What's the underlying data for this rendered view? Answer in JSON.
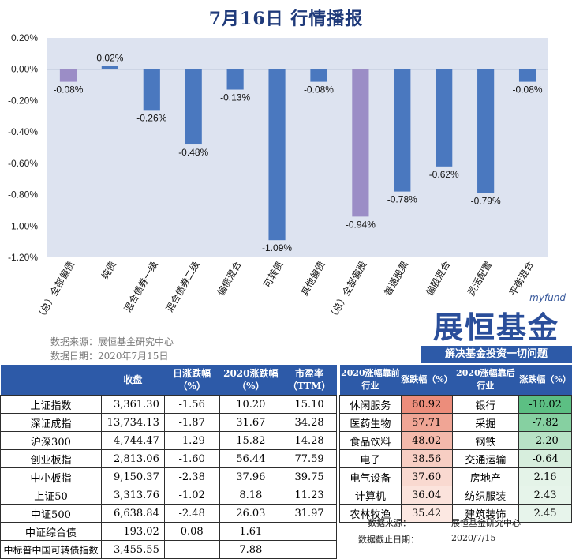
{
  "title": "7月16日 行情播报",
  "chart_data": {
    "type": "bar",
    "categories": [
      "（总）全部偏债",
      "纯债",
      "混合债券一级",
      "混合债券二级",
      "偏债混合",
      "可转债",
      "其他偏债",
      "（总）全部偏股",
      "普通股票",
      "偏股混合",
      "灵活配置",
      "平衡混合"
    ],
    "values": [
      -0.08,
      0.02,
      -0.26,
      -0.48,
      -0.13,
      -1.09,
      -0.08,
      -0.94,
      -0.78,
      -0.62,
      -0.79,
      -0.08
    ],
    "value_labels": [
      "-0.08%",
      "0.02%",
      "-0.26%",
      "-0.48%",
      "-0.13%",
      "-1.09%",
      "-0.08%",
      "-0.94%",
      "-0.78%",
      "-0.62%",
      "-0.79%",
      "-0.08%"
    ],
    "highlight": [
      true,
      false,
      false,
      false,
      false,
      false,
      false,
      true,
      false,
      false,
      false,
      false
    ],
    "yticks": [
      0.2,
      0.0,
      -0.2,
      -0.4,
      -0.6,
      -0.8,
      -1.0,
      -1.2
    ],
    "ytick_labels": [
      "0.20%",
      "0.00%",
      "-0.20%",
      "-0.40%",
      "-0.60%",
      "-0.80%",
      "-1.00%",
      "-1.20%"
    ],
    "ylim": [
      -1.2,
      0.2
    ],
    "colors": {
      "bar": "#4a78bf",
      "highlight": "#9b8dc6",
      "plot_bg": "#dde3f0"
    }
  },
  "source": {
    "line1": "数据来源：展恒基金研究中心",
    "line2": "数据日期：2020年7月15日"
  },
  "logo": {
    "brand": "myfund",
    "main": "展恒基金",
    "slogan": "解决基金投资一切问题"
  },
  "left_table": {
    "headers": [
      "",
      "收盘",
      "日涨跌幅（%）",
      "2020涨跌幅（%）",
      "市盈率（TTM）"
    ],
    "rows": [
      {
        "name": "上证指数",
        "close": "3,361.30",
        "daily": "-1.56",
        "ytd": "10.20",
        "pe": "15.10"
      },
      {
        "name": "深证成指",
        "close": "13,734.13",
        "daily": "-1.87",
        "ytd": "31.67",
        "pe": "34.28"
      },
      {
        "name": "沪深300",
        "close": "4,744.47",
        "daily": "-1.29",
        "ytd": "15.82",
        "pe": "14.28"
      },
      {
        "name": "创业板指",
        "close": "2,813.06",
        "daily": "-1.60",
        "ytd": "56.44",
        "pe": "77.59"
      },
      {
        "name": "中小板指",
        "close": "9,150.37",
        "daily": "-2.38",
        "ytd": "37.96",
        "pe": "39.75"
      },
      {
        "name": "上证50",
        "close": "3,313.76",
        "daily": "-1.02",
        "ytd": "8.18",
        "pe": "11.23"
      },
      {
        "name": "中证500",
        "close": "6,638.84",
        "daily": "-2.48",
        "ytd": "26.03",
        "pe": "31.97"
      },
      {
        "name": "中证综合债",
        "close": "193.02",
        "daily": "0.08",
        "ytd": "1.61",
        "pe": ""
      },
      {
        "name": "中标普中国可转债指数",
        "close": "3,455.55",
        "daily": "-",
        "ytd": "7.88",
        "pe": ""
      }
    ]
  },
  "right_table": {
    "headers": [
      "2020涨幅靠前行业",
      "涨跌幅（%）",
      "2020涨幅靠后行业",
      "涨跌幅（%）"
    ],
    "rows": [
      {
        "top": "休闲服务",
        "top_val": "60.92",
        "bot": "银行",
        "bot_val": "-10.02"
      },
      {
        "top": "医药生物",
        "top_val": "57.71",
        "bot": "采掘",
        "bot_val": "-7.82"
      },
      {
        "top": "食品饮料",
        "top_val": "48.02",
        "bot": "钢铁",
        "bot_val": "-2.20"
      },
      {
        "top": "电子",
        "top_val": "38.56",
        "bot": "交通运输",
        "bot_val": "-0.64"
      },
      {
        "top": "电气设备",
        "top_val": "37.60",
        "bot": "房地产",
        "bot_val": "2.16"
      },
      {
        "top": "计算机",
        "top_val": "36.04",
        "bot": "纺织服装",
        "bot_val": "2.43"
      },
      {
        "top": "农林牧渔",
        "top_val": "35.42",
        "bot": "建筑装饰",
        "bot_val": "2.45"
      }
    ],
    "top_colors": [
      "#ec8d7b",
      "#f0a595",
      "#f3b9ab",
      "#f7cec3",
      "#f9d9d0",
      "#fbe3dc",
      "#fce8e2"
    ],
    "bot_colors": [
      "#5cbf83",
      "#86d0a1",
      "#b8e2c6",
      "#d7eedd",
      "#e4f3e8",
      "#e6f4ea",
      "#e7f4eb"
    ],
    "footer": {
      "source_label": "数据来源：",
      "source_value": "展恒基金研究中心",
      "date_label": "数据截止日期：",
      "date_value": "2020/7/15"
    }
  }
}
